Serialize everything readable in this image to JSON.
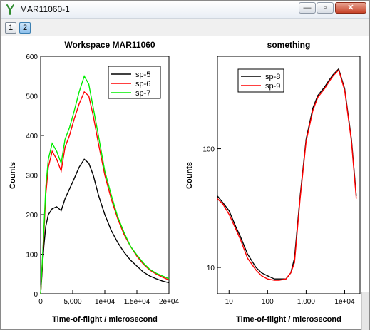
{
  "window": {
    "title": "MAR11060-1",
    "minimize_glyph": "—",
    "maximize_glyph": "▫",
    "close_glyph": "✕"
  },
  "tabs": [
    {
      "label": "1",
      "active": false
    },
    {
      "label": "2",
      "active": true
    }
  ],
  "colors": {
    "sp-5": "#000000",
    "sp-6": "#ff0000",
    "sp-7": "#00ee00",
    "sp-8": "#000000",
    "sp-9": "#ff0000"
  },
  "chart_data": [
    {
      "type": "line",
      "title": "Workspace MAR11060",
      "xlabel": "Time-of-flight / microsecond",
      "ylabel": "Counts",
      "xlim": [
        0,
        20000
      ],
      "ylim": [
        0,
        600
      ],
      "xticks": [
        0,
        5000,
        10000,
        15000,
        20000
      ],
      "xtick_labels": [
        "0",
        "5,000",
        "1e+04",
        "1.5e+04",
        "2e+04"
      ],
      "yticks": [
        0,
        100,
        200,
        300,
        400,
        500,
        600
      ],
      "ytick_labels": [
        "0",
        "100",
        "200",
        "300",
        "400",
        "500",
        "600"
      ],
      "legend_position": "top-right",
      "x": [
        0,
        500,
        800,
        1200,
        1800,
        2500,
        3200,
        3800,
        4500,
        5200,
        6000,
        6800,
        7500,
        8200,
        9000,
        10000,
        11000,
        12000,
        13000,
        14000,
        15000,
        16000,
        17000,
        18000,
        19000,
        20000
      ],
      "series": [
        {
          "name": "sp-5",
          "values": [
            0,
            120,
            170,
            200,
            215,
            220,
            210,
            240,
            265,
            290,
            320,
            340,
            330,
            300,
            250,
            200,
            160,
            130,
            105,
            85,
            70,
            55,
            45,
            38,
            32,
            28
          ]
        },
        {
          "name": "sp-6",
          "values": [
            0,
            150,
            250,
            320,
            360,
            340,
            310,
            370,
            400,
            440,
            480,
            510,
            500,
            450,
            380,
            300,
            240,
            190,
            150,
            120,
            95,
            75,
            60,
            50,
            42,
            35
          ]
        },
        {
          "name": "sp-7",
          "values": [
            0,
            160,
            270,
            340,
            380,
            360,
            330,
            390,
            420,
            460,
            510,
            550,
            530,
            470,
            400,
            310,
            250,
            195,
            155,
            120,
            98,
            78,
            62,
            52,
            45,
            38
          ]
        }
      ]
    },
    {
      "type": "line",
      "title": "something",
      "xlabel": "Time-of-flight / microsecond",
      "ylabel": "Counts",
      "x_scale": "log",
      "y_scale": "log",
      "xlim": [
        5,
        25000
      ],
      "ylim": [
        6,
        600
      ],
      "xticks": [
        10,
        100,
        1000,
        10000
      ],
      "xtick_labels": [
        "10",
        "100",
        "1,000",
        "1e+04"
      ],
      "yticks": [
        10,
        100
      ],
      "ytick_labels": [
        "10",
        "100"
      ],
      "legend_position": "top-left",
      "x": [
        5,
        7,
        10,
        15,
        20,
        30,
        50,
        70,
        100,
        150,
        200,
        300,
        400,
        500,
        700,
        1000,
        1500,
        2000,
        3000,
        4000,
        5000,
        7000,
        10000,
        15000,
        20000
      ],
      "series": [
        {
          "name": "sp-8",
          "values": [
            40,
            35,
            30,
            22,
            18,
            13,
            10,
            9,
            8.5,
            8,
            8,
            8,
            9,
            12,
            40,
            120,
            220,
            280,
            330,
            380,
            420,
            470,
            320,
            120,
            40
          ]
        },
        {
          "name": "sp-9",
          "values": [
            38,
            34,
            28,
            21,
            17,
            12,
            9.5,
            8.5,
            8,
            7.8,
            7.8,
            8,
            9,
            11,
            38,
            115,
            210,
            270,
            320,
            370,
            410,
            460,
            310,
            115,
            38
          ]
        }
      ]
    }
  ]
}
